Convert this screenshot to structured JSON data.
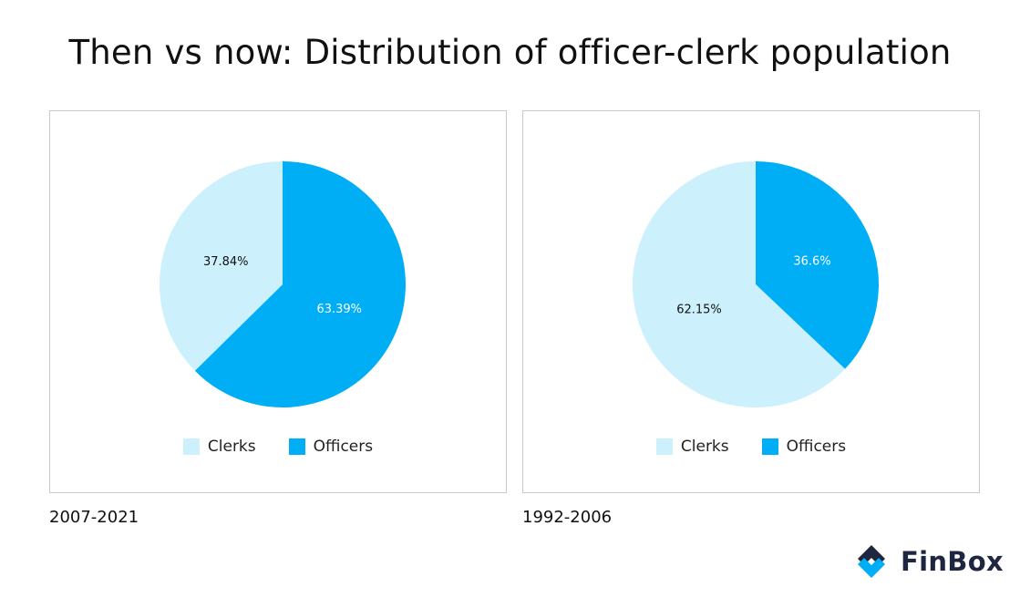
{
  "title": {
    "prefix": "Then vs now:",
    "highlight": "Distribution of officer-clerk population"
  },
  "brand": {
    "name": "FinBox"
  },
  "colors": {
    "clerks": "#ccf0fc",
    "officers": "#00aef6",
    "highlight": "#f7df8a",
    "logo_dark": "#1f2740",
    "logo_blue": "#00aef6"
  },
  "chart_data": [
    {
      "type": "pie",
      "period": "2007-2021",
      "slices": [
        {
          "name": "Clerks",
          "value": 37.84,
          "label": "37.84%"
        },
        {
          "name": "Officers",
          "value": 63.39,
          "label": "63.39%"
        }
      ],
      "legend": [
        "Clerks",
        "Officers"
      ],
      "legend_position": "bottom"
    },
    {
      "type": "pie",
      "period": "1992-2006",
      "slices": [
        {
          "name": "Clerks",
          "value": 62.15,
          "label": "62.15%"
        },
        {
          "name": "Officers",
          "value": 36.6,
          "label": "36.6%"
        }
      ],
      "legend": [
        "Clerks",
        "Officers"
      ],
      "legend_position": "bottom"
    }
  ]
}
